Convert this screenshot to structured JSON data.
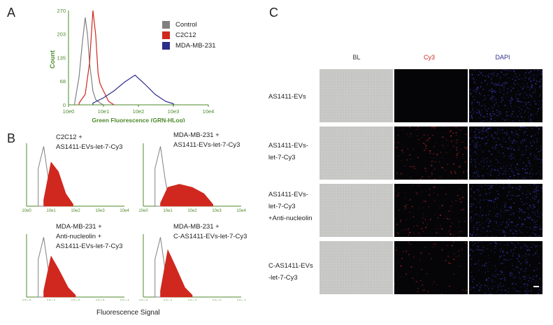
{
  "panel_a": {
    "letter": "A",
    "ylabel": "Count",
    "xlabel": "Green Fluorescence (GRN-HLog)",
    "yticks": [
      "270",
      "203",
      "135",
      "68",
      "0"
    ],
    "xticks": [
      "10e0",
      "10e1",
      "10e2",
      "10e3",
      "10e4"
    ],
    "legend": [
      {
        "label": "Control",
        "color": "#808080"
      },
      {
        "label": "C2C12",
        "color": "#d0281e"
      },
      {
        "label": "MDA-MB-231",
        "color": "#2c2c8c"
      }
    ]
  },
  "panel_b": {
    "letter": "B",
    "xlabel": "Fluorescence Signal",
    "xticks": [
      "10e0",
      "10e1",
      "10e2",
      "10e3",
      "10e4"
    ],
    "plots": [
      {
        "lines": [
          "C2C12  +",
          "AS1411-EVs-let-7-Cy3"
        ]
      },
      {
        "lines": [
          "MDA-MB-231 +",
          "AS1411-EVs-let-7-Cy3"
        ]
      },
      {
        "lines": [
          "MDA-MB-231 +",
          "Anti-nucleolin +",
          "AS1411-EVs-let-7-Cy3"
        ]
      },
      {
        "lines": [
          "MDA-MB-231 +",
          "C-AS1411-EVs-let-7-Cy3"
        ]
      }
    ]
  },
  "panel_c": {
    "letter": "C",
    "columns": [
      {
        "label": "BL",
        "color": "#333333"
      },
      {
        "label": "Cy3",
        "color": "#d0281e"
      },
      {
        "label": "DAPI",
        "color": "#2c2c8c"
      }
    ],
    "rows": [
      {
        "lines": [
          "AS1411-EVs"
        ]
      },
      {
        "lines": [
          "AS1411-EVs-",
          "let-7-Cy3"
        ]
      },
      {
        "lines": [
          "AS1411-EVs-",
          "let-7-Cy3",
          "+Anti-nucleolin"
        ]
      },
      {
        "lines": [
          "C-AS1411-EVs",
          "-let-7-Cy3"
        ]
      }
    ]
  },
  "chart_data": [
    {
      "type": "area",
      "title": "",
      "xlabel": "Green Fluorescence (GRN-HLog)",
      "ylabel": "Count",
      "xscale": "log",
      "xlim": [
        1,
        10000
      ],
      "ylim": [
        0,
        270
      ],
      "series": [
        {
          "name": "Control",
          "color": "#808080",
          "x": [
            1.5,
            2,
            2.5,
            3,
            3.5,
            4,
            5,
            6,
            8,
            10
          ],
          "values": [
            5,
            80,
            180,
            250,
            200,
            120,
            40,
            15,
            5,
            0
          ]
        },
        {
          "name": "C2C12",
          "color": "#d0281e",
          "x": [
            2,
            3,
            4,
            5,
            6,
            7,
            8,
            10,
            14,
            20
          ],
          "values": [
            5,
            30,
            120,
            270,
            200,
            90,
            60,
            40,
            10,
            0
          ]
        },
        {
          "name": "MDA-MB-231",
          "color": "#2c2c8c",
          "x": [
            5,
            10,
            20,
            40,
            80,
            150,
            300,
            600,
            1000
          ],
          "values": [
            5,
            20,
            40,
            65,
            85,
            60,
            30,
            10,
            3
          ]
        }
      ]
    },
    {
      "type": "area",
      "title": "C2C12 + AS1411-EVs-let-7-Cy3",
      "xscale": "log",
      "xlim": [
        1,
        10000
      ],
      "series": [
        {
          "name": "Control",
          "color": "#808080",
          "x": [
            3,
            5,
            8,
            12
          ],
          "values": [
            60,
            95,
            40,
            5
          ]
        },
        {
          "name": "Cy3",
          "color": "#d0281e",
          "x": [
            5,
            10,
            20,
            40,
            80
          ],
          "values": [
            10,
            70,
            55,
            20,
            3
          ]
        }
      ]
    },
    {
      "type": "area",
      "title": "MDA-MB-231 + AS1411-EVs-let-7-Cy3",
      "xscale": "log",
      "xlim": [
        1,
        10000
      ],
      "series": [
        {
          "name": "Control",
          "color": "#808080",
          "x": [
            3,
            5,
            8,
            12
          ],
          "values": [
            60,
            95,
            40,
            5
          ]
        },
        {
          "name": "Cy3",
          "color": "#d0281e",
          "x": [
            5,
            10,
            30,
            100,
            300,
            700
          ],
          "values": [
            5,
            30,
            35,
            30,
            20,
            3
          ]
        }
      ]
    },
    {
      "type": "area",
      "title": "MDA-MB-231 + Anti-nucleolin + AS1411-EVs-let-7-Cy3",
      "xscale": "log",
      "xlim": [
        1,
        10000
      ],
      "series": [
        {
          "name": "Control",
          "color": "#808080",
          "x": [
            3,
            5,
            8,
            12
          ],
          "values": [
            60,
            95,
            40,
            5
          ]
        },
        {
          "name": "Cy3",
          "color": "#d0281e",
          "x": [
            5,
            10,
            20,
            50,
            100
          ],
          "values": [
            10,
            65,
            45,
            15,
            3
          ]
        }
      ]
    },
    {
      "type": "area",
      "title": "MDA-MB-231 + C-AS1411-EVs-let-7-Cy3",
      "xscale": "log",
      "xlim": [
        1,
        10000
      ],
      "series": [
        {
          "name": "Control",
          "color": "#808080",
          "x": [
            3,
            5,
            8,
            12
          ],
          "values": [
            60,
            95,
            40,
            5
          ]
        },
        {
          "name": "Cy3",
          "color": "#d0281e",
          "x": [
            5,
            10,
            20,
            50,
            100
          ],
          "values": [
            10,
            75,
            50,
            15,
            3
          ]
        }
      ]
    }
  ]
}
